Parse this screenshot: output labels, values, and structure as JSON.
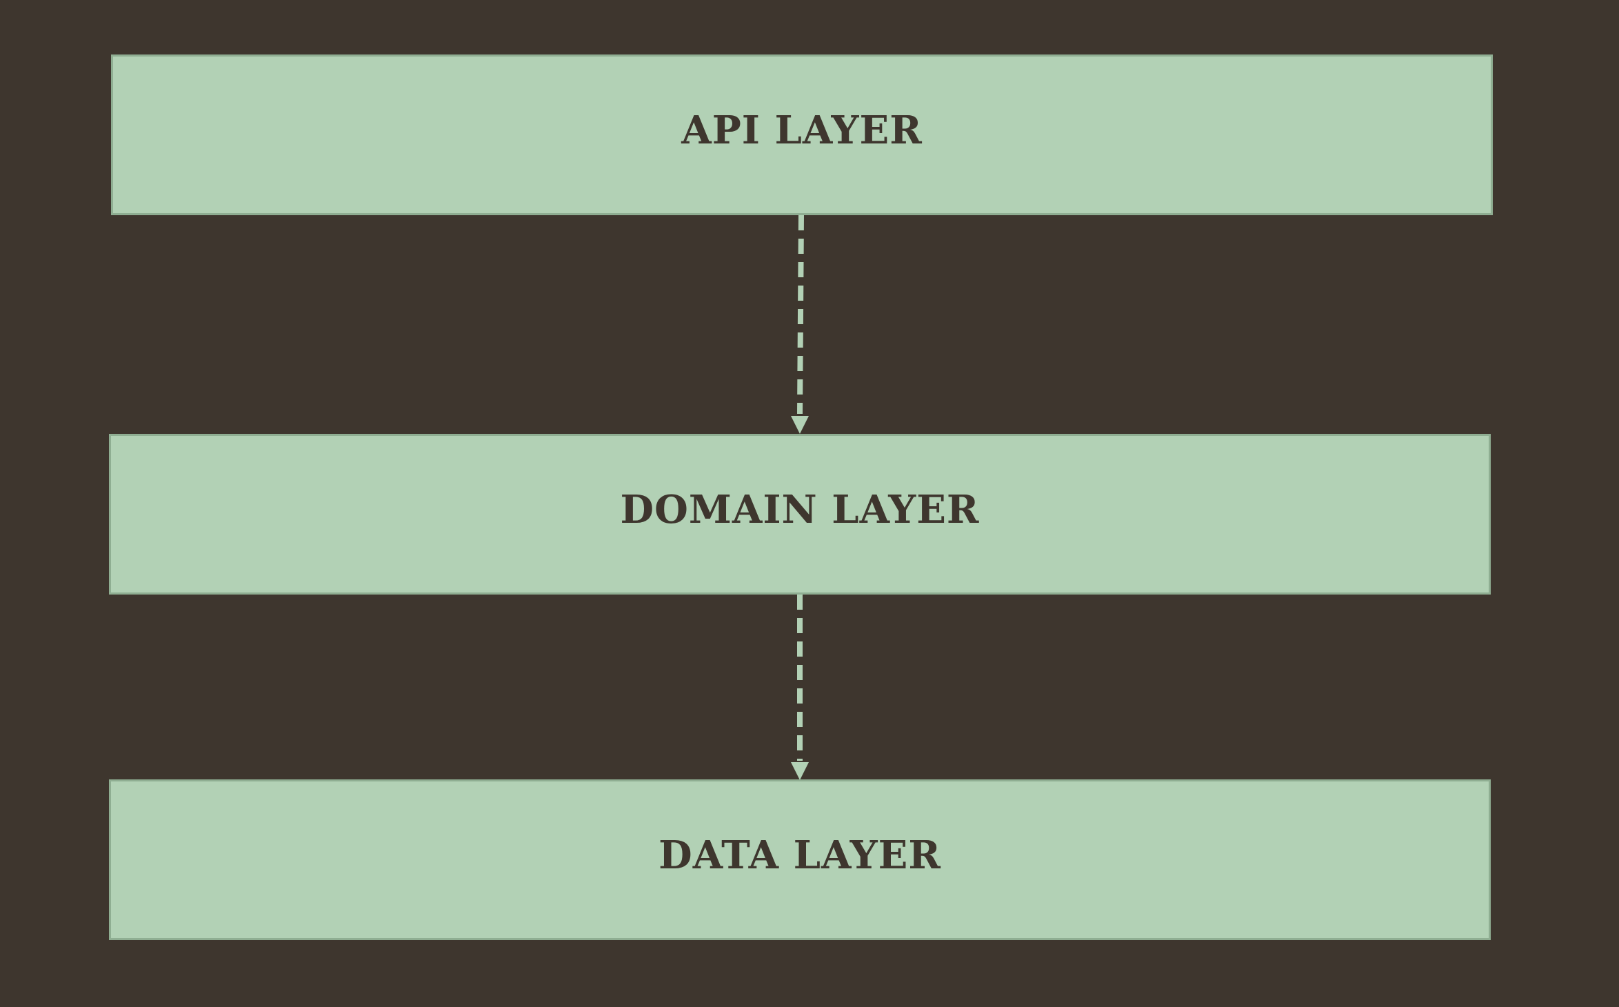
{
  "diagram": {
    "type": "layered-architecture",
    "colors": {
      "background": "#3e362e",
      "box_fill": "#b2d1b5",
      "box_border": "#8fae92",
      "text": "#3e362e",
      "connector": "#b2d1b5"
    },
    "layers": [
      {
        "id": "api",
        "label": "API LAYER"
      },
      {
        "id": "domain",
        "label": "DOMAIN LAYER"
      },
      {
        "id": "data",
        "label": "DATA LAYER"
      }
    ],
    "connections": [
      {
        "from": "api",
        "to": "domain",
        "style": "dashed",
        "arrow": "end"
      },
      {
        "from": "domain",
        "to": "data",
        "style": "dashed",
        "arrow": "end"
      }
    ]
  }
}
